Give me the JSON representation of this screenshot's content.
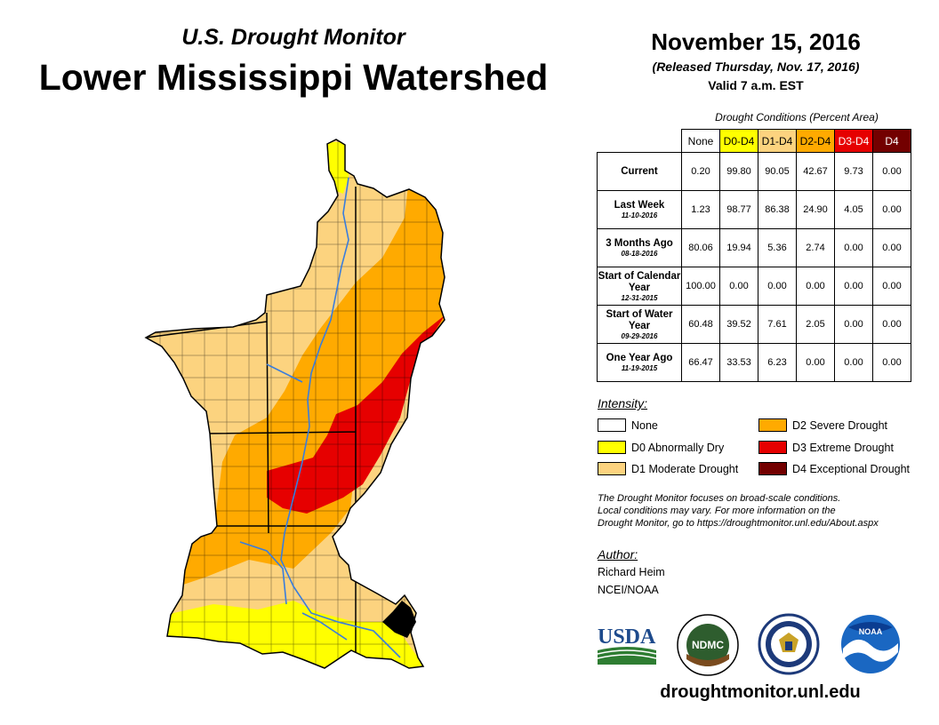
{
  "header": {
    "subtitle": "U.S. Drought Monitor",
    "title": "Lower Mississippi Watershed",
    "date": "November 15, 2016",
    "released": "(Released Thursday, Nov. 17, 2016)",
    "valid": "Valid 7 a.m. EST"
  },
  "table": {
    "caption": "Drought Conditions (Percent Area)",
    "columns": [
      "None",
      "D0-D4",
      "D1-D4",
      "D2-D4",
      "D3-D4",
      "D4"
    ],
    "rows": [
      {
        "label": "Current",
        "sub": "",
        "values": [
          "0.20",
          "99.80",
          "90.05",
          "42.67",
          "9.73",
          "0.00"
        ]
      },
      {
        "label": "Last Week",
        "sub": "11-10-2016",
        "values": [
          "1.23",
          "98.77",
          "86.38",
          "24.90",
          "4.05",
          "0.00"
        ]
      },
      {
        "label": "3 Months Ago",
        "sub": "08-18-2016",
        "values": [
          "80.06",
          "19.94",
          "5.36",
          "2.74",
          "0.00",
          "0.00"
        ]
      },
      {
        "label": "Start of Calendar Year",
        "sub": "12-31-2015",
        "values": [
          "100.00",
          "0.00",
          "0.00",
          "0.00",
          "0.00",
          "0.00"
        ]
      },
      {
        "label": "Start of Water Year",
        "sub": "09-29-2016",
        "values": [
          "60.48",
          "39.52",
          "7.61",
          "2.05",
          "0.00",
          "0.00"
        ]
      },
      {
        "label": "One Year Ago",
        "sub": "11-19-2015",
        "values": [
          "66.47",
          "33.53",
          "6.23",
          "0.00",
          "0.00",
          "0.00"
        ]
      }
    ]
  },
  "legend": {
    "title": "Intensity:",
    "items": [
      {
        "label": "None",
        "color": "#ffffff"
      },
      {
        "label": "D0 Abnormally Dry",
        "color": "#ffff00"
      },
      {
        "label": "D1 Moderate Drought",
        "color": "#fcd37f"
      },
      {
        "label": "D2 Severe Drought",
        "color": "#ffaa00"
      },
      {
        "label": "D3 Extreme Drought",
        "color": "#e60000"
      },
      {
        "label": "D4 Exceptional Drought",
        "color": "#730000"
      }
    ]
  },
  "note": {
    "line1": "The Drought Monitor focuses on broad-scale conditions.",
    "line2": "Local conditions may vary. For more information on the",
    "line3": "Drought Monitor, go to https://droughtmonitor.unl.edu/About.aspx"
  },
  "author": {
    "title": "Author:",
    "name": "Richard Heim",
    "org": "NCEI/NOAA"
  },
  "logos": {
    "usda": "USDA",
    "ndmc": "NDMC",
    "noaa": "NOAA"
  },
  "website": "droughtmonitor.unl.edu",
  "map_colors": {
    "d0": "#ffff00",
    "d1": "#fcd37f",
    "d2": "#ffaa00",
    "d3": "#e60000",
    "water": "#3a7ddc",
    "border": "#000000"
  }
}
